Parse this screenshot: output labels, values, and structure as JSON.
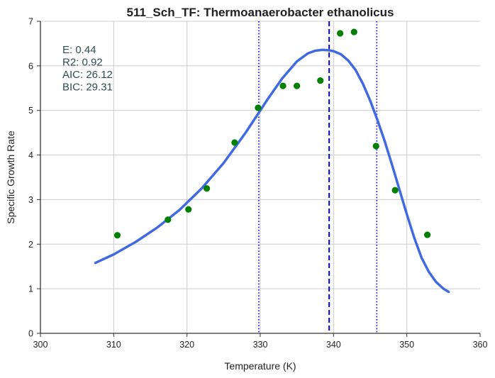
{
  "chart_data": {
    "type": "scatter",
    "title": "511_Sch_TF: Thermoanaerobacter ethanolicus",
    "xlabel": "Temperature (K)",
    "ylabel": "Specific Growth Rate",
    "xlim": [
      300,
      360
    ],
    "ylim": [
      0,
      7
    ],
    "xticks": [
      "300",
      "310",
      "320",
      "330",
      "340",
      "350",
      "360"
    ],
    "yticks": [
      "0",
      "1",
      "2",
      "3",
      "4",
      "5",
      "6",
      "7"
    ],
    "grid": true,
    "stats": [
      "E:  0.44",
      "R2:  0.92",
      "AIC: 26.12",
      "BIC: 29.31"
    ],
    "points": {
      "color": "#008000",
      "x": [
        310.5,
        317.4,
        320.2,
        322.7,
        326.5,
        329.7,
        333.1,
        335.0,
        338.2,
        340.9,
        342.8,
        345.8,
        348.4,
        352.8
      ],
      "y": [
        2.2,
        2.55,
        2.78,
        3.25,
        4.28,
        5.06,
        5.55,
        5.55,
        5.67,
        6.73,
        6.76,
        4.2,
        3.21,
        2.21
      ]
    },
    "fit_curve": {
      "color": "#4169e1",
      "x": [
        307.5,
        310,
        313,
        316,
        319,
        322,
        325,
        328,
        331,
        333,
        335,
        336.5,
        337.5,
        338.5,
        339.3,
        340,
        341,
        342,
        343,
        344,
        345,
        346,
        347,
        348,
        349,
        350,
        351,
        352,
        353,
        354,
        355,
        355.7
      ],
      "y": [
        1.58,
        1.77,
        2.05,
        2.38,
        2.77,
        3.25,
        3.82,
        4.5,
        5.25,
        5.72,
        6.1,
        6.28,
        6.34,
        6.36,
        6.35,
        6.33,
        6.26,
        6.12,
        5.91,
        5.6,
        5.22,
        4.78,
        4.3,
        3.77,
        3.22,
        2.67,
        2.15,
        1.7,
        1.38,
        1.15,
        1.0,
        0.93
      ]
    },
    "vlines": [
      {
        "x": 329.8,
        "style": "dotted",
        "color": "#0000ff"
      },
      {
        "x": 339.4,
        "style": "dashed",
        "color": "#0000ff"
      },
      {
        "x": 345.9,
        "style": "dotted",
        "color": "#0000ff"
      }
    ]
  }
}
